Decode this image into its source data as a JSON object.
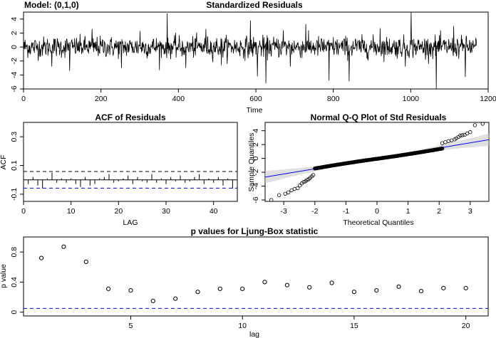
{
  "model_label": "Model: (0,1,0)",
  "chart_data": [
    {
      "id": "resid",
      "type": "line",
      "title": "Standardized Residuals",
      "xlabel": "Time",
      "ylabel": "",
      "xlim": [
        0,
        1200
      ],
      "ylim": [
        -6,
        5
      ],
      "x_ticks": [
        0,
        200,
        400,
        600,
        800,
        1000,
        1200
      ],
      "y_ticks": [
        -6,
        -4,
        -2,
        0,
        2,
        4
      ],
      "n": 1170,
      "color": "#000000",
      "spikes": [
        {
          "x": 72,
          "y": -2.8
        },
        {
          "x": 118,
          "y": -3.4
        },
        {
          "x": 176,
          "y": 2.6
        },
        {
          "x": 252,
          "y": -3.0
        },
        {
          "x": 300,
          "y": 2.3
        },
        {
          "x": 350,
          "y": -3.3
        },
        {
          "x": 370,
          "y": 4.8
        },
        {
          "x": 418,
          "y": -3.0
        },
        {
          "x": 470,
          "y": 2.6
        },
        {
          "x": 510,
          "y": -2.6
        },
        {
          "x": 585,
          "y": 3.8
        },
        {
          "x": 603,
          "y": -4.2
        },
        {
          "x": 625,
          "y": -5.2
        },
        {
          "x": 670,
          "y": 2.4
        },
        {
          "x": 688,
          "y": -2.8
        },
        {
          "x": 728,
          "y": 3.3
        },
        {
          "x": 788,
          "y": -4.8
        },
        {
          "x": 840,
          "y": -4.9
        },
        {
          "x": 920,
          "y": 2.7
        },
        {
          "x": 985,
          "y": -2.8
        },
        {
          "x": 1000,
          "y": 5.0
        },
        {
          "x": 1065,
          "y": -6.0
        },
        {
          "x": 1110,
          "y": 3.0
        },
        {
          "x": 1140,
          "y": -4.3
        }
      ]
    },
    {
      "id": "acf",
      "type": "bar",
      "title": "ACF of Residuals",
      "xlabel": "LAG",
      "ylabel": "ACF",
      "xlim": [
        0,
        45
      ],
      "ylim": [
        -0.15,
        0.4
      ],
      "x_ticks": [
        0,
        10,
        20,
        30,
        40
      ],
      "y_ticks": [
        -0.1,
        0.1,
        0.3
      ],
      "conf_bound": 0.058,
      "lags": [
        1,
        2,
        3,
        4,
        5,
        6,
        7,
        8,
        9,
        10,
        11,
        12,
        13,
        14,
        15,
        16,
        17,
        18,
        19,
        20,
        21,
        22,
        23,
        24,
        25,
        26,
        27,
        28,
        29,
        30,
        31,
        32,
        33,
        34,
        35,
        36,
        37,
        38,
        39,
        40,
        41,
        42,
        43,
        44,
        45
      ],
      "values": [
        -0.03,
        0.02,
        -0.04,
        -0.06,
        0.01,
        0.05,
        -0.02,
        0.01,
        -0.02,
        0.01,
        -0.03,
        -0.05,
        0.02,
        -0.04,
        -0.03,
        0.01,
        0.02,
        0.04,
        -0.02,
        -0.01,
        0.01,
        0.03,
        -0.03,
        0.02,
        -0.01,
        -0.02,
        0.04,
        -0.02,
        0.01,
        -0.03,
        0.02,
        -0.01,
        0.03,
        -0.02,
        -0.01,
        0.02,
        0.04,
        -0.03,
        0.01,
        -0.02,
        0.02,
        -0.04,
        0.01,
        -0.06,
        0.03
      ],
      "bound_color": "#0000ff"
    },
    {
      "id": "qq",
      "type": "scatter",
      "title": "Normal Q-Q Plot of Std Residuals",
      "xlabel": "Theoretical Quantiles",
      "ylabel": "Sample Quantiles",
      "xlim": [
        -3.6,
        3.6
      ],
      "ylim": [
        -6.2,
        5.2
      ],
      "x_ticks": [
        -3,
        -2,
        -1,
        0,
        1,
        2,
        3
      ],
      "y_ticks": [
        -6,
        -4,
        -2,
        0,
        2,
        4
      ],
      "n": 1170,
      "line": {
        "intercept": 0.0,
        "slope": 0.75
      },
      "line_color": "#0000ff",
      "band_color": "#cccccc",
      "tail_low": [
        [
          -3.4,
          -6.0
        ],
        [
          -3.15,
          -5.3
        ],
        [
          -2.95,
          -5.1
        ],
        [
          -2.85,
          -4.9
        ],
        [
          -2.75,
          -4.6
        ],
        [
          -2.65,
          -4.4
        ],
        [
          -2.55,
          -4.3
        ],
        [
          -2.48,
          -3.9
        ],
        [
          -2.42,
          -3.6
        ],
        [
          -2.36,
          -3.4
        ],
        [
          -2.3,
          -3.3
        ],
        [
          -2.25,
          -3.1
        ],
        [
          -2.2,
          -3.0
        ],
        [
          -2.15,
          -2.8
        ],
        [
          -2.1,
          -2.6
        ],
        [
          -2.05,
          -2.4
        ]
      ],
      "tail_high": [
        [
          2.1,
          2.2
        ],
        [
          2.2,
          2.35
        ],
        [
          2.3,
          2.5
        ],
        [
          2.4,
          2.6
        ],
        [
          2.5,
          2.75
        ],
        [
          2.55,
          2.9
        ],
        [
          2.62,
          3.1
        ],
        [
          2.68,
          3.3
        ],
        [
          2.75,
          3.35
        ],
        [
          2.82,
          3.4
        ],
        [
          2.9,
          3.6
        ],
        [
          3.0,
          3.8
        ],
        [
          3.15,
          4.8
        ],
        [
          3.4,
          5.0
        ]
      ]
    },
    {
      "id": "ljung",
      "type": "scatter",
      "title": "p values for Ljung-Box statistic",
      "xlabel": "lag",
      "ylabel": "p value",
      "xlim": [
        0.2,
        21
      ],
      "ylim": [
        -0.05,
        1.0
      ],
      "x_ticks": [
        5,
        10,
        15,
        20
      ],
      "y_ticks": [
        0.0,
        0.4,
        0.8
      ],
      "x": [
        1,
        2,
        3,
        4,
        5,
        6,
        7,
        8,
        9,
        10,
        11,
        12,
        13,
        14,
        15,
        16,
        17,
        18,
        19,
        20
      ],
      "values": [
        0.72,
        0.87,
        0.67,
        0.31,
        0.29,
        0.15,
        0.18,
        0.27,
        0.31,
        0.31,
        0.4,
        0.36,
        0.33,
        0.39,
        0.27,
        0.29,
        0.34,
        0.28,
        0.32,
        0.32
      ],
      "threshold": 0.05,
      "threshold_color": "#0000ff"
    }
  ]
}
